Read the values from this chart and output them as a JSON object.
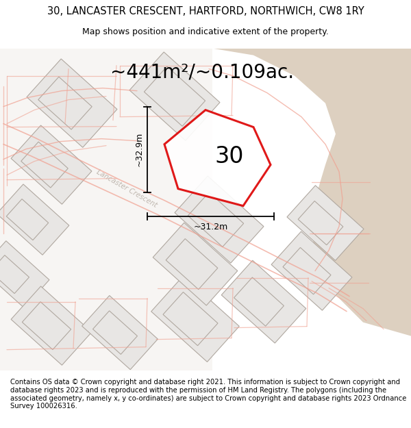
{
  "title": "30, LANCASTER CRESCENT, HARTFORD, NORTHWICH, CW8 1RY",
  "subtitle": "Map shows position and indicative extent of the property.",
  "area_label": "~441m²/~0.109ac.",
  "plot_number": "30",
  "dim_vertical": "~32.9m",
  "dim_horizontal": "~31.2m",
  "road_label": "Lancaster Crescent",
  "footer": "Contains OS data © Crown copyright and database right 2021. This information is subject to Crown copyright and database rights 2023 and is reproduced with the permission of HM Land Registry. The polygons (including the associated geometry, namely x, y co-ordinates) are subject to Crown copyright and database rights 2023 Ordnance Survey 100026316.",
  "map_bg": "#f7f5f3",
  "building_fill": "#e8e6e4",
  "building_edge": "#b0a8a0",
  "road_line_color": "#f0a090",
  "highlight_edge": "#dd0000",
  "tan_fill": "#ddd0c0",
  "road_label_color": "#c0b8b0",
  "title_fontsize": 10.5,
  "subtitle_fontsize": 9,
  "area_fontsize": 20,
  "plot_num_fontsize": 24,
  "footer_fontsize": 7.2,
  "dim_fontsize": 9
}
